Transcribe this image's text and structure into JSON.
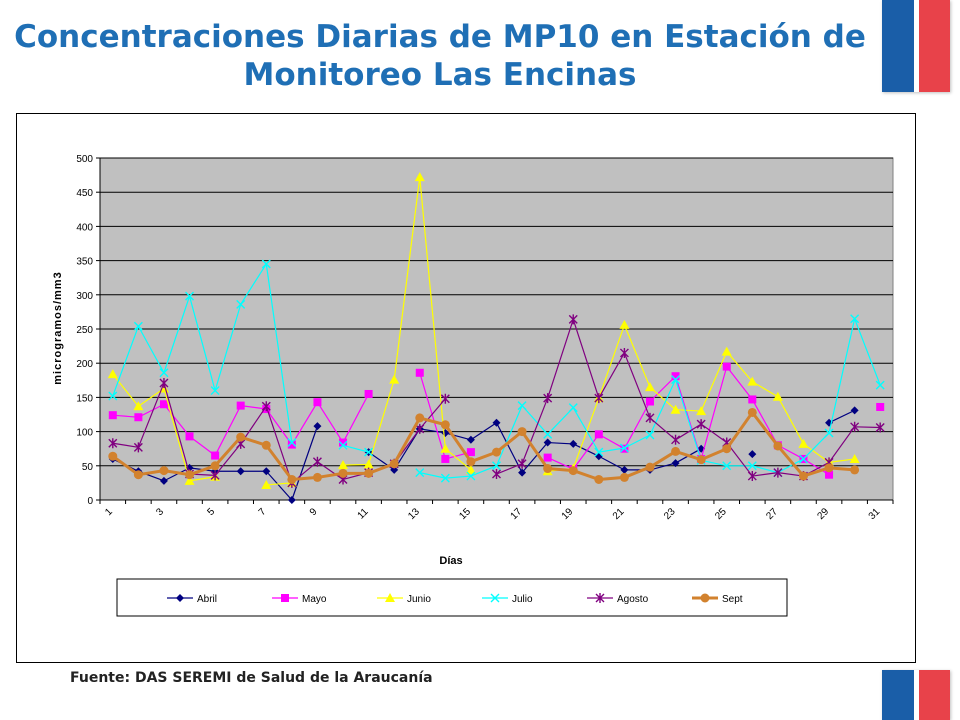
{
  "title": "Concentraciones Diarias de MP10 en Estación de Monitoreo Las Encinas",
  "source": "Fuente: DAS SEREMI de Salud de la Araucanía",
  "colors": {
    "title": "#1f6fb5",
    "plot_bg": "#c0c0c0",
    "flag_blue": "#1a5ea8",
    "flag_red": "#e8424a"
  },
  "chart_data": {
    "type": "line",
    "xlabel": "Días",
    "ylabel": "microgramos/mm3",
    "ylim": [
      0,
      500
    ],
    "yticks": [
      0,
      50,
      100,
      150,
      200,
      250,
      300,
      350,
      400,
      450,
      500
    ],
    "x": [
      1,
      2,
      3,
      4,
      5,
      6,
      7,
      8,
      9,
      10,
      11,
      12,
      13,
      14,
      15,
      16,
      17,
      18,
      19,
      20,
      21,
      22,
      23,
      24,
      25,
      26,
      27,
      28,
      29,
      30,
      31
    ],
    "xtick_labels": [
      "1",
      "3",
      "5",
      "7",
      "9",
      "11",
      "13",
      "15",
      "17",
      "19",
      "21",
      "23",
      "25",
      "27",
      "29",
      "31"
    ],
    "grid": true,
    "legend_position": "bottom",
    "series": [
      {
        "name": "Abril",
        "color": "#000080",
        "marker": "diamond",
        "values": [
          60,
          42,
          28,
          47,
          42,
          42,
          42,
          0,
          108,
          null,
          70,
          44,
          104,
          98,
          88,
          113,
          40,
          84,
          82,
          64,
          44,
          44,
          54,
          75,
          null,
          67,
          null,
          null,
          113,
          131,
          null
        ]
      },
      {
        "name": "Mayo",
        "color": "#ff00ff",
        "marker": "square",
        "values": [
          124,
          121,
          140,
          93,
          65,
          138,
          133,
          81,
          143,
          84,
          155,
          null,
          186,
          60,
          70,
          null,
          null,
          62,
          45,
          96,
          75,
          144,
          181,
          60,
          195,
          147,
          80,
          60,
          37,
          null,
          136
        ]
      },
      {
        "name": "Junio",
        "color": "#ffff00",
        "marker": "triangle",
        "values": [
          184,
          137,
          163,
          28,
          34,
          null,
          22,
          25,
          null,
          51,
          52,
          176,
          472,
          75,
          44,
          null,
          null,
          42,
          46,
          149,
          256,
          165,
          132,
          130,
          217,
          173,
          151,
          82,
          55,
          60,
          null
        ]
      },
      {
        "name": "Julio",
        "color": "#00ffff",
        "marker": "x",
        "values": [
          152,
          254,
          186,
          298,
          160,
          286,
          345,
          84,
          null,
          80,
          70,
          null,
          40,
          32,
          35,
          50,
          138,
          96,
          135,
          70,
          76,
          95,
          176,
          58,
          50,
          50,
          40,
          60,
          98,
          265,
          168
        ]
      },
      {
        "name": "Agosto",
        "color": "#800080",
        "marker": "star",
        "values": [
          83,
          77,
          171,
          38,
          36,
          82,
          137,
          25,
          56,
          30,
          40,
          53,
          104,
          148,
          null,
          38,
          53,
          149,
          264,
          149,
          215,
          120,
          88,
          111,
          84,
          35,
          40,
          35,
          55,
          107,
          106
        ]
      },
      {
        "name": "Sept",
        "color": "#d2822e",
        "marker": "circle",
        "values": [
          64,
          37,
          43,
          37,
          50,
          92,
          80,
          30,
          33,
          39,
          39,
          53,
          120,
          110,
          56,
          70,
          100,
          46,
          43,
          30,
          33,
          48,
          71,
          59,
          75,
          128,
          79,
          35,
          47,
          44,
          null
        ]
      }
    ]
  }
}
